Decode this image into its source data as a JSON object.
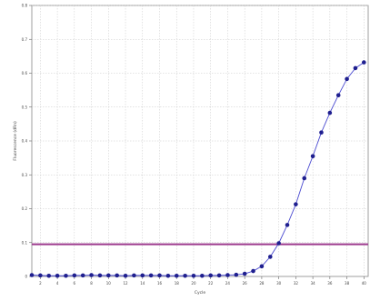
{
  "chart_data": {
    "type": "line",
    "title": "",
    "xlabel": "Cycle",
    "ylabel": "Fluorescence (dRn)",
    "xlim": [
      1,
      40.5
    ],
    "ylim": [
      0,
      0.8
    ],
    "xticks": [
      2,
      4,
      6,
      8,
      10,
      12,
      14,
      16,
      18,
      20,
      22,
      24,
      26,
      28,
      30,
      32,
      34,
      36,
      38,
      40
    ],
    "yticks": [
      0,
      0.1,
      0.2,
      0.3,
      0.4,
      0.5,
      0.6,
      0.7,
      0.8
    ],
    "grid": true,
    "series": [
      {
        "color": "#1f1f8f",
        "x": [
          1,
          2,
          3,
          4,
          5,
          6,
          7,
          8,
          9,
          10,
          11,
          12,
          13,
          14,
          15,
          16,
          17,
          18,
          19,
          20,
          21,
          22,
          23,
          24,
          25,
          26,
          27,
          28,
          29,
          30,
          31,
          32,
          33,
          34,
          35,
          36,
          37,
          38,
          39,
          40
        ],
        "y": [
          0.004,
          0.003,
          0.002,
          0.002,
          0.002,
          0.003,
          0.003,
          0.004,
          0.003,
          0.003,
          0.003,
          0.002,
          0.003,
          0.003,
          0.003,
          0.003,
          0.002,
          0.002,
          0.002,
          0.002,
          0.002,
          0.003,
          0.003,
          0.004,
          0.005,
          0.008,
          0.016,
          0.03,
          0.058,
          0.098,
          0.152,
          0.213,
          0.29,
          0.355,
          0.425,
          0.483,
          0.535,
          0.583,
          0.615,
          0.632
        ]
      }
    ],
    "threshold": {
      "value": 0.095,
      "color": "#9c3a8e"
    }
  }
}
